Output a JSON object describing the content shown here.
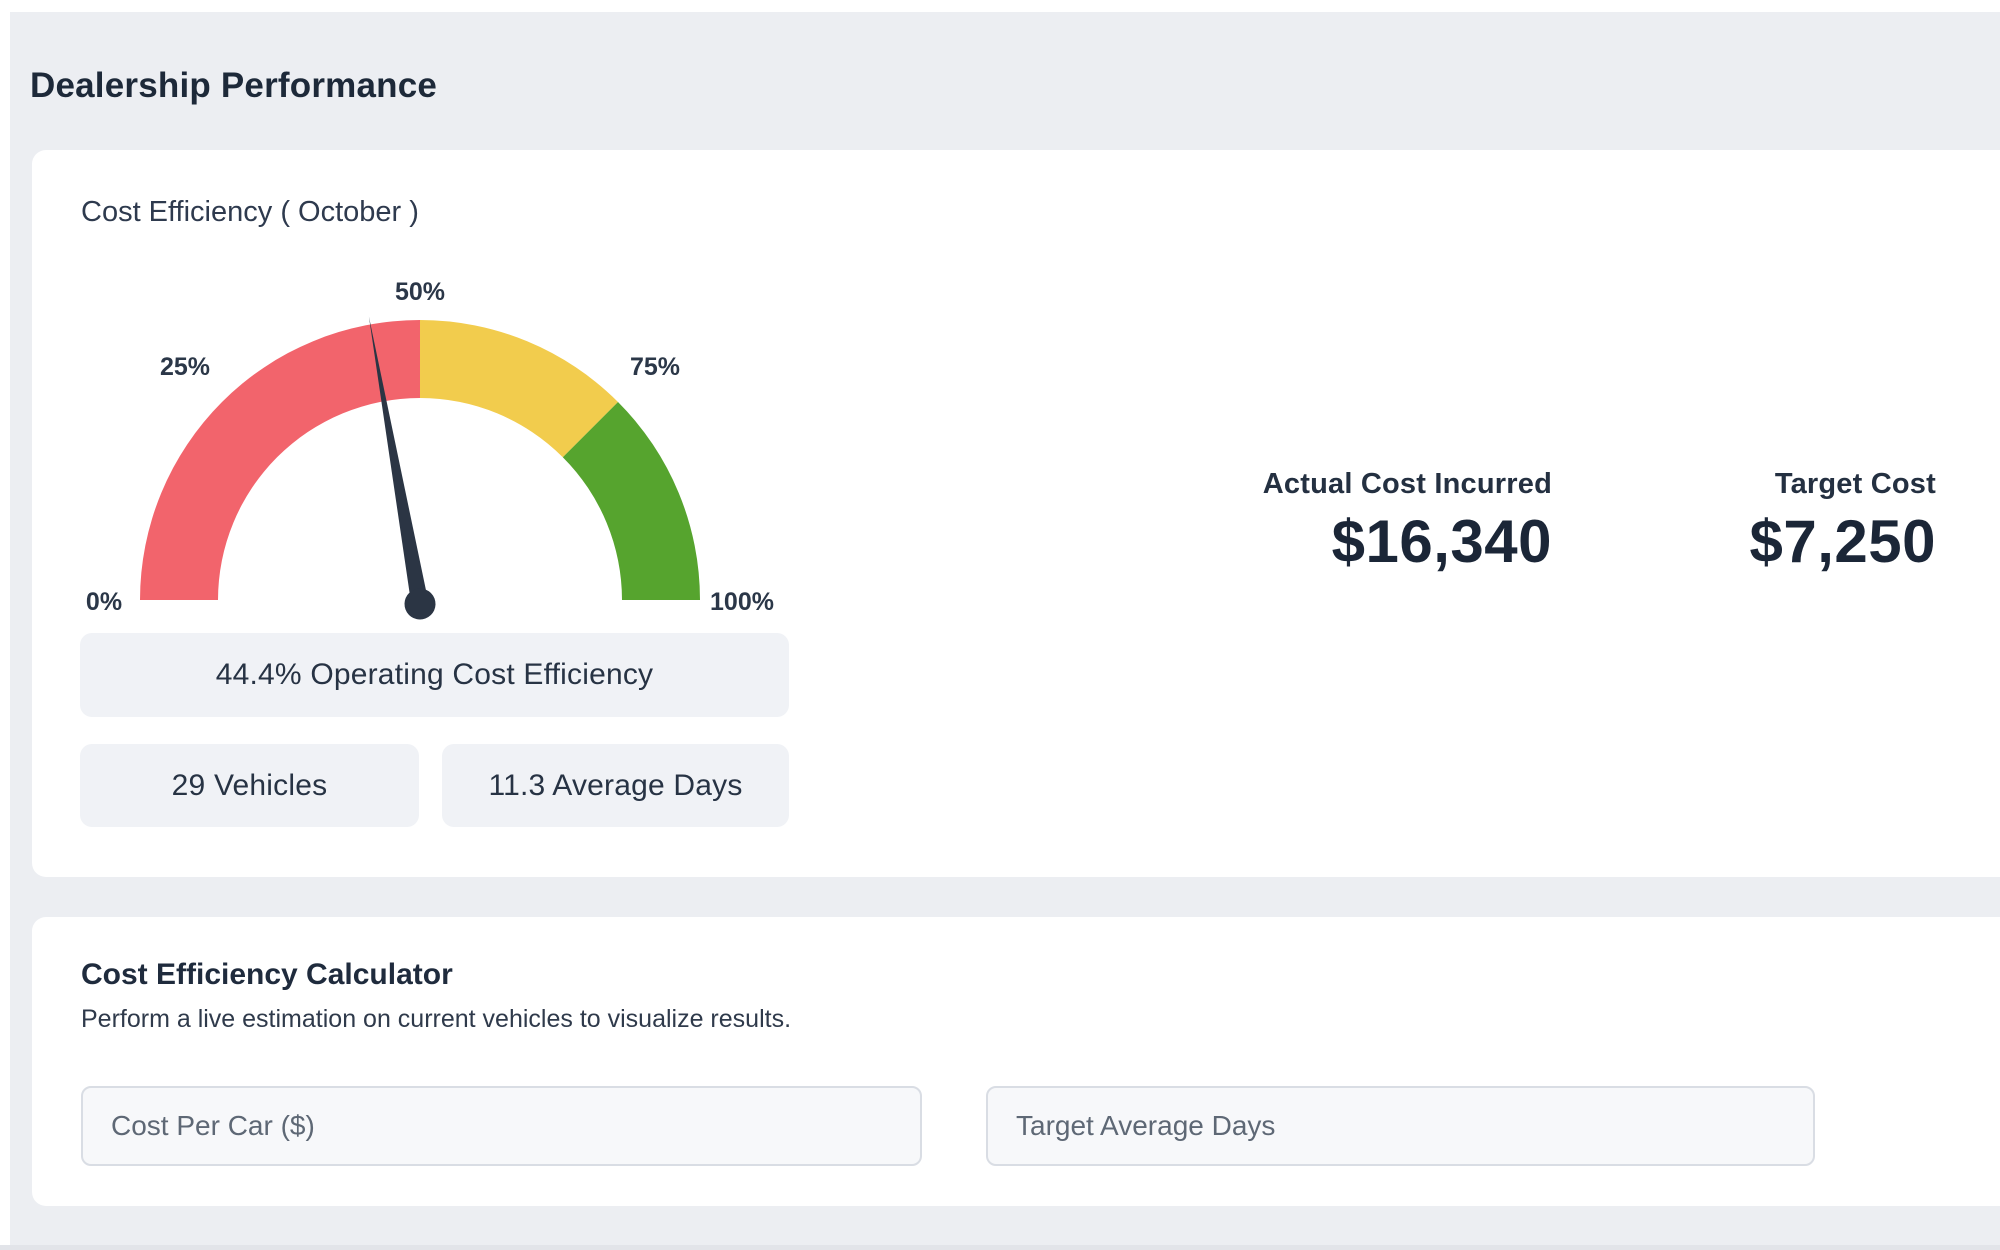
{
  "page": {
    "title": "Dealership Performance"
  },
  "gauge_card": {
    "title": "Cost Efficiency ( October )",
    "badges": {
      "efficiency": "44.4% Operating Cost Efficiency",
      "vehicles": "29 Vehicles",
      "average_days": "11.3 Average Days"
    },
    "stats": [
      {
        "label": "Actual Cost Incurred",
        "value": "$16,340"
      },
      {
        "label": "Target Cost",
        "value": "$7,250"
      }
    ]
  },
  "calculator_card": {
    "title": "Cost Efficiency Calculator",
    "subtitle": "Perform a live estimation on current vehicles to visualize results.",
    "inputs": [
      {
        "placeholder": "Cost Per Car ($)",
        "value": ""
      },
      {
        "placeholder": "Target Average Days",
        "value": ""
      }
    ]
  },
  "chart_data": {
    "type": "gauge",
    "title": "Cost Efficiency ( October )",
    "value": 44.4,
    "unit": "%",
    "min": 0,
    "max": 100,
    "ticks": [
      "0%",
      "25%",
      "50%",
      "75%",
      "100%"
    ],
    "segments": [
      {
        "from": 0,
        "to": 50,
        "color": "#F2646C"
      },
      {
        "from": 50,
        "to": 75,
        "color": "#F2CC4D"
      },
      {
        "from": 75,
        "to": 100,
        "color": "#56A42E"
      }
    ],
    "needle_color": "#2B3544",
    "legend": "none",
    "annotation": "44.4% Operating Cost Efficiency"
  },
  "colors": {
    "page_background": "#ECEEF2",
    "card_background": "#FFFFFF",
    "badge_background": "#F0F2F6",
    "text_primary": "#1D2939",
    "gauge_red": "#F2646C",
    "gauge_yellow": "#F2CC4D",
    "gauge_green": "#56A42E"
  }
}
